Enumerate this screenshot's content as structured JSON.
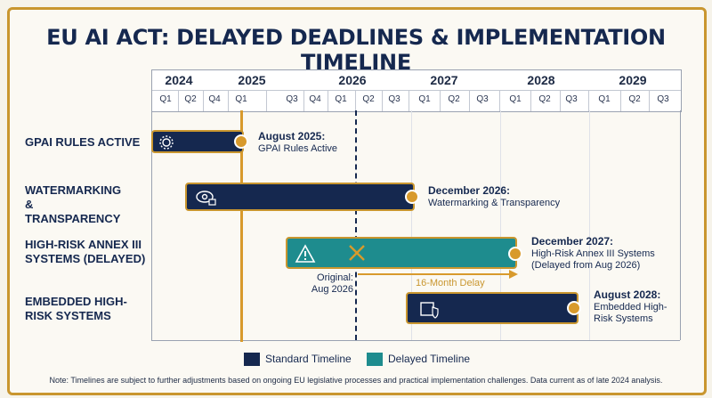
{
  "title": "EU AI ACT: DELAYED DEADLINES & IMPLEMENTATION TIMELINE",
  "years": [
    "2024",
    "2025",
    "2026",
    "2027",
    "2028",
    "2029"
  ],
  "quarters": [
    "Q1",
    "Q2",
    "Q4",
    "Q1",
    "Q3",
    "Q4",
    "Q1",
    "Q2",
    "Q3",
    "Q1",
    "Q2",
    "Q3",
    "Q1",
    "Q2",
    "Q3",
    "Q1",
    "Q2",
    "Q3"
  ],
  "rows": [
    {
      "label": "GPAI RULES ACTIVE",
      "type": "standard",
      "annotation_title": "August 2025:",
      "annotation_text": "GPAI Rules Active",
      "icon": "gear-icon"
    },
    {
      "label": "WATERMARKING & TRANSPARENCY",
      "type": "standard",
      "annotation_title": "December 2026:",
      "annotation_text": "Watermarking & Transparency",
      "icon": "eye-lock-icon"
    },
    {
      "label": "HIGH-RISK ANNEX III SYSTEMS (DELAYED)",
      "type": "delayed",
      "annotation_title": "December 2027:",
      "annotation_text": "High-Risk Annex III Systems (Delayed from Aug 2026)",
      "icon": "warning-icon"
    },
    {
      "label": "EMBEDDED HIGH-RISK SYSTEMS",
      "type": "standard",
      "annotation_title": "August 2028:",
      "annotation_text": "Embedded High-Risk Systems",
      "icon": "chip-shield-icon"
    }
  ],
  "original_note": "Original: Aug 2026",
  "delay_label": "16-Month Delay",
  "legend": {
    "standard": "Standard Timeline",
    "delayed": "Delayed Timeline"
  },
  "colors": {
    "standard": "#15284f",
    "delayed": "#1e8c8e",
    "accent": "#d89a2c"
  },
  "footnote": "Note: Timelines are subject to further adjustments based on ongoing EU legislative processes and practical implementation challenges. Data current as of late 2024 analysis."
}
